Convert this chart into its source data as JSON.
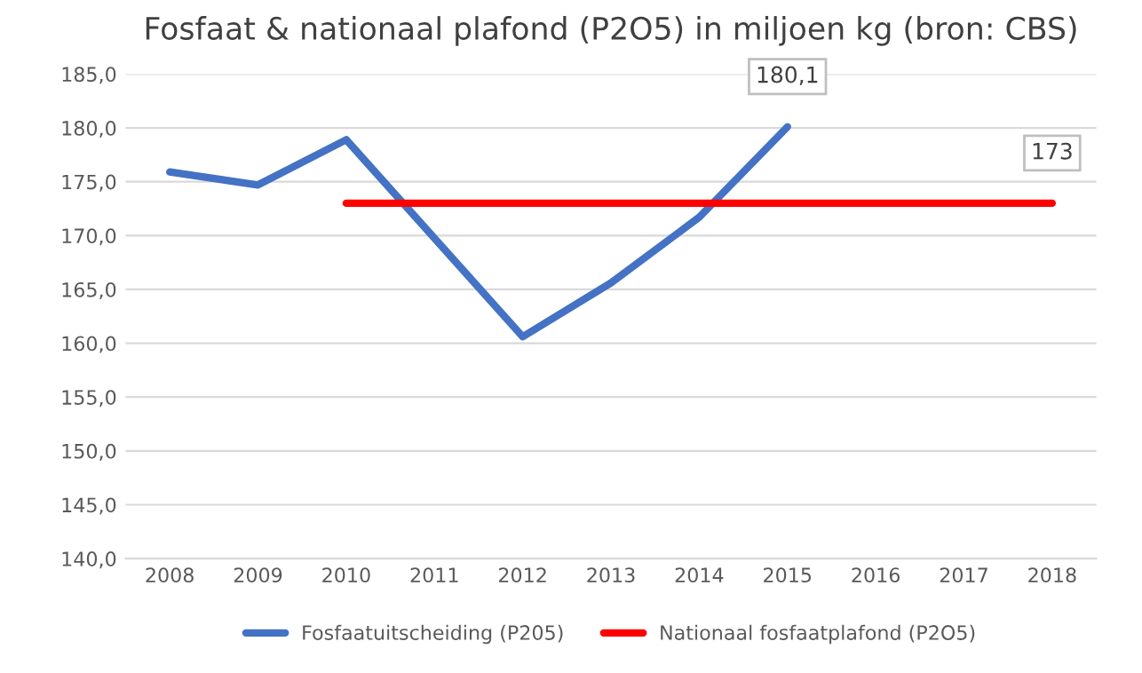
{
  "chart_data": {
    "type": "line",
    "title": "Fosfaat & nationaal plafond (P2O5) in miljoen kg (bron: CBS)",
    "categories": [
      "2008",
      "2009",
      "2010",
      "2011",
      "2012",
      "2013",
      "2014",
      "2015",
      "2016",
      "2017",
      "2018"
    ],
    "series": [
      {
        "name": "Fosfaatuitscheiding (P205)",
        "color": "#4472c4",
        "values": [
          175.9,
          174.7,
          178.9,
          null,
          160.6,
          165.6,
          171.7,
          180.1,
          null,
          null,
          null
        ],
        "value_labels": [
          null,
          null,
          null,
          null,
          null,
          null,
          null,
          "180,1",
          null,
          null,
          null
        ]
      },
      {
        "name": "Nationaal fosfaatplafond (P2O5)",
        "color": "#ff0000",
        "values": [
          null,
          null,
          173,
          null,
          null,
          null,
          null,
          null,
          null,
          null,
          173
        ],
        "value_labels": [
          null,
          null,
          null,
          null,
          null,
          null,
          null,
          null,
          null,
          null,
          "173"
        ]
      }
    ],
    "ylim": [
      140,
      185
    ],
    "yticks": [
      {
        "value": 140,
        "label": "140,0"
      },
      {
        "value": 145,
        "label": "145,0"
      },
      {
        "value": 150,
        "label": "150,0"
      },
      {
        "value": 155,
        "label": "155,0"
      },
      {
        "value": 160,
        "label": "160,0"
      },
      {
        "value": 165,
        "label": "165,0"
      },
      {
        "value": 170,
        "label": "170,0"
      },
      {
        "value": 175,
        "label": "175,0"
      },
      {
        "value": 180,
        "label": "180,0"
      },
      {
        "value": 185,
        "label": "185,0"
      }
    ],
    "grid": "y",
    "legend": "bottom",
    "marker": "none",
    "line_style": "solid"
  }
}
